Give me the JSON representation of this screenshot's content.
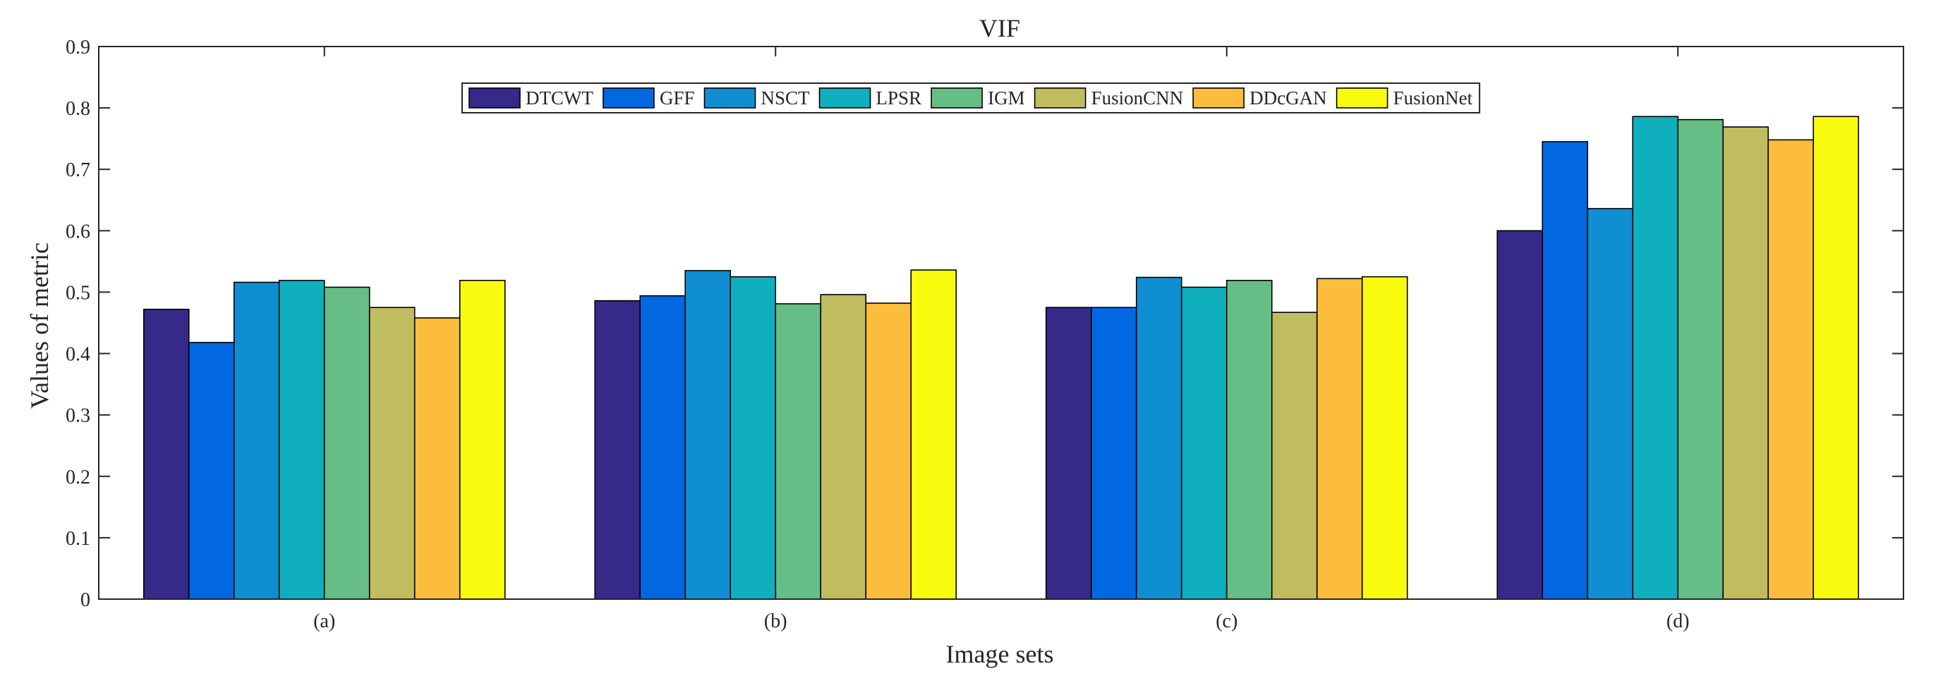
{
  "chart_data": {
    "type": "bar",
    "title": "VIF",
    "xlabel": "Image sets",
    "ylabel": "Values of metric",
    "ylim": [
      0,
      0.9
    ],
    "yticks": [
      "0",
      "0.1",
      "0.2",
      "0.3",
      "0.4",
      "0.5",
      "0.6",
      "0.7",
      "0.8",
      "0.9"
    ],
    "categories": [
      "(a)",
      "(b)",
      "(c)",
      "(d)"
    ],
    "legend_position": "top-center",
    "series": [
      {
        "name": "DTCWT",
        "color": "#352a87",
        "values": [
          0.472,
          0.486,
          0.475,
          0.6
        ]
      },
      {
        "name": "GFF",
        "color": "#0268e1",
        "values": [
          0.418,
          0.494,
          0.475,
          0.745
        ]
      },
      {
        "name": "NSCT",
        "color": "#108ed2",
        "values": [
          0.516,
          0.535,
          0.524,
          0.636
        ]
      },
      {
        "name": "LPSR",
        "color": "#0fafbd",
        "values": [
          0.519,
          0.525,
          0.508,
          0.786
        ]
      },
      {
        "name": "IGM",
        "color": "#66be86",
        "values": [
          0.508,
          0.481,
          0.519,
          0.781
        ]
      },
      {
        "name": "FusionCNN",
        "color": "#c0bc60",
        "values": [
          0.475,
          0.496,
          0.467,
          0.769
        ]
      },
      {
        "name": "DDcGAN",
        "color": "#fbbd3b",
        "values": [
          0.458,
          0.482,
          0.522,
          0.748
        ]
      },
      {
        "name": "FusionNet",
        "color": "#f9fb0e",
        "values": [
          0.519,
          0.536,
          0.525,
          0.786
        ]
      }
    ]
  }
}
